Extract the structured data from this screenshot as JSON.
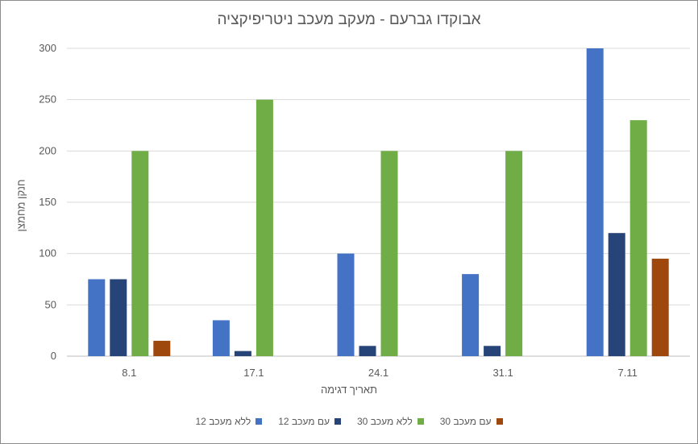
{
  "chart_data": {
    "type": "bar",
    "title": "אבוקדו גברעם - מעקב מעכב ניטריפיקציה",
    "xlabel": "תאריך דגימה",
    "ylabel": "חנקן מחמצן",
    "categories": [
      "8.1",
      "17.1",
      "24.1",
      "31.1",
      "7.11"
    ],
    "ylim": [
      0,
      300
    ],
    "yticks": [
      0,
      50,
      100,
      150,
      200,
      250,
      300
    ],
    "grid": true,
    "legend_position": "bottom",
    "series": [
      {
        "name": "ללא מעכב 12",
        "color": "#4472C4",
        "values": [
          75,
          35,
          100,
          80,
          300
        ]
      },
      {
        "name": "עם מעכב 12",
        "color": "#264478",
        "values": [
          75,
          5,
          10,
          10,
          120
        ]
      },
      {
        "name": "ללא מעכב 30",
        "color": "#70AD47",
        "values": [
          200,
          250,
          200,
          200,
          230
        ]
      },
      {
        "name": "עם מעכב 30",
        "color": "#9E480E",
        "values": [
          15,
          0,
          0,
          0,
          95
        ]
      }
    ]
  }
}
